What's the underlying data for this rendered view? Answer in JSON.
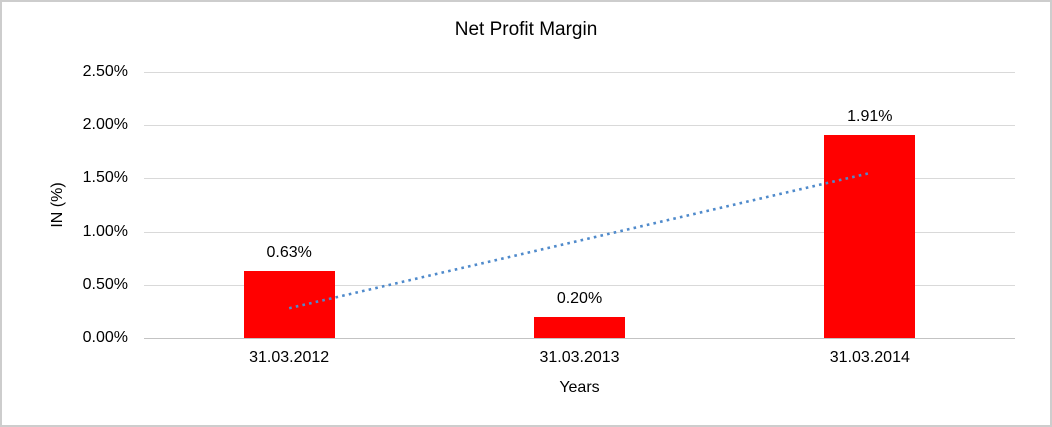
{
  "chart_data": {
    "type": "bar",
    "title": "Net Profit Margin",
    "xlabel": "Years",
    "ylabel": "IN (%)",
    "categories": [
      "31.03.2012",
      "31.03.2013",
      "31.03.2014"
    ],
    "values": [
      0.63,
      0.2,
      1.91
    ],
    "data_labels": [
      "0.63%",
      "0.20%",
      "1.91%"
    ],
    "yticks": [
      "0.00%",
      "0.50%",
      "1.00%",
      "1.50%",
      "2.00%",
      "2.50%"
    ],
    "ytick_step": 0.5,
    "ylim": [
      0,
      2.5
    ],
    "grid": true,
    "legend": "none",
    "bar_color": "#ff0000",
    "gridline_color": "#d9d9d9",
    "trendline": {
      "type": "linear",
      "style": "dotted",
      "color": "#4f8acb",
      "start_value": 0.28,
      "end_value": 1.55
    }
  }
}
